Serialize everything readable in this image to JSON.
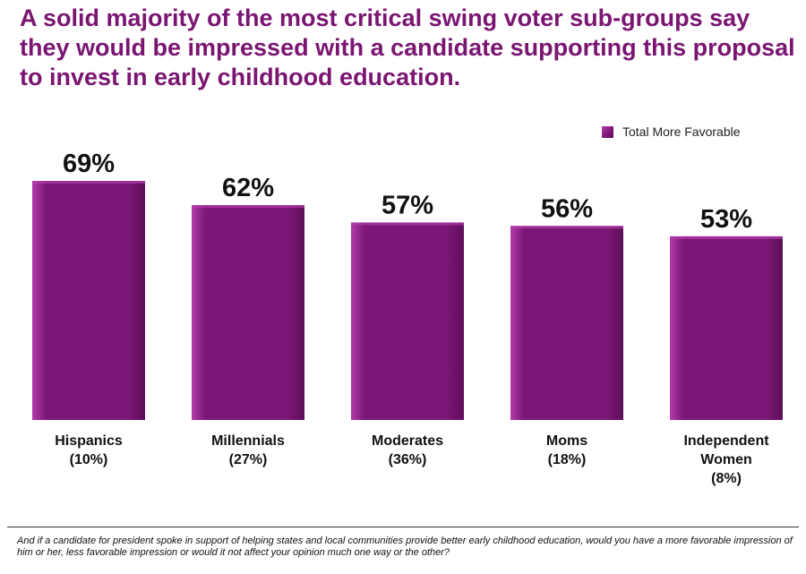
{
  "title": "A solid majority of the most critical swing voter sub-groups say they would be impressed with a candidate supporting this proposal to invest in early childhood education.",
  "legend_label": "Total More Favorable",
  "footnote": "And if a candidate for president spoke in support of helping states and local communities provide better early childhood education, would you have a more favorable impression of him or her, less favorable impression or would it not affect your opinion much one way or the other?",
  "colors": {
    "title": "#7a1672",
    "bar_light": "#b43cab",
    "bar_mid": "#7b1776",
    "bar_dark": "#5e0f59"
  },
  "chart_data": {
    "type": "bar",
    "categories": [
      [
        "Hispanics",
        "(10%)"
      ],
      [
        "Millennials",
        "(27%)"
      ],
      [
        "Moderates",
        "(36%)"
      ],
      [
        "Moms",
        "(18%)"
      ],
      [
        "Independent",
        "Women",
        "(8%)"
      ]
    ],
    "series": [
      {
        "name": "Total More Favorable",
        "values": [
          69,
          62,
          57,
          56,
          53
        ],
        "value_labels": [
          "69%",
          "62%",
          "57%",
          "56%",
          "53%"
        ]
      }
    ],
    "legend_position": "top-right",
    "grid": false,
    "ylim": [
      0,
      69
    ]
  }
}
